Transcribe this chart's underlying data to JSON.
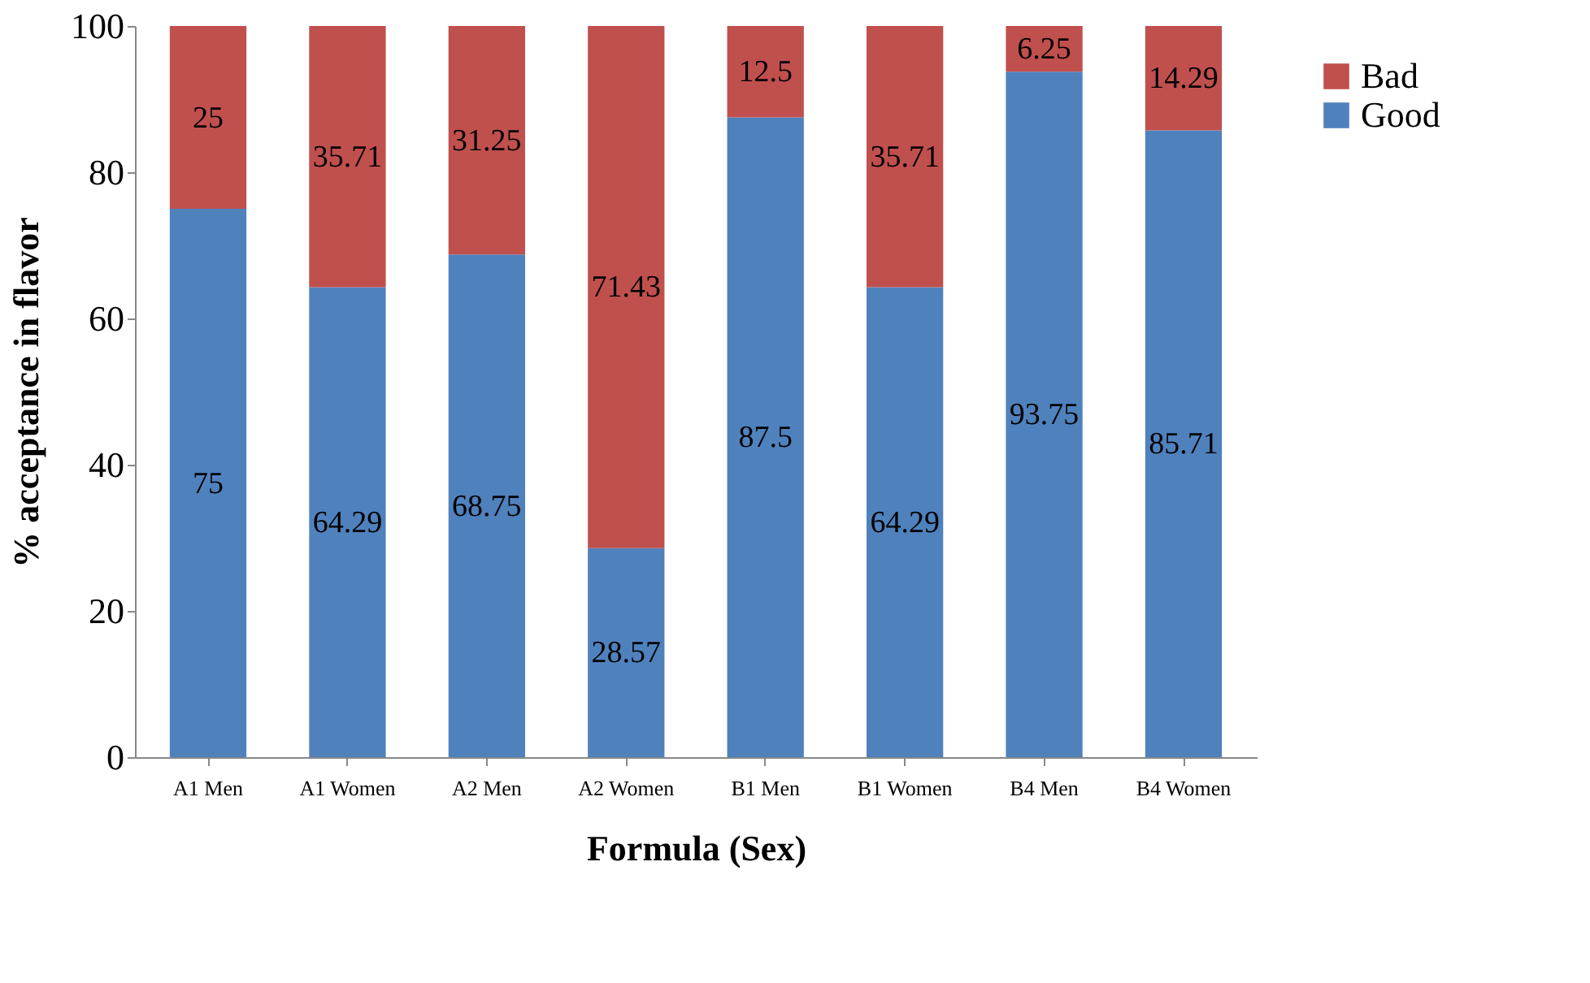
{
  "chart_data": {
    "type": "bar",
    "stacked": true,
    "xlabel": "Formula (Sex)",
    "ylabel": "% acceptance in flavor",
    "categories": [
      "A1 Men",
      "A1 Women",
      "A2 Men",
      "A2 Women",
      "B1 Men",
      "B1 Women",
      "B4 Men",
      "B4 Women"
    ],
    "series": [
      {
        "name": "Good",
        "color": "#4f81bd",
        "values": [
          75,
          64.29,
          68.75,
          28.57,
          87.5,
          64.29,
          93.75,
          85.71
        ]
      },
      {
        "name": "Bad",
        "color": "#c0504d",
        "values": [
          25,
          35.71,
          31.25,
          71.43,
          12.5,
          35.71,
          6.25,
          14.29
        ]
      }
    ],
    "ylim": [
      0,
      100
    ],
    "yticks": [
      0,
      20,
      40,
      60,
      80,
      100
    ],
    "grid": false,
    "legend": "right",
    "data_labels": true
  }
}
